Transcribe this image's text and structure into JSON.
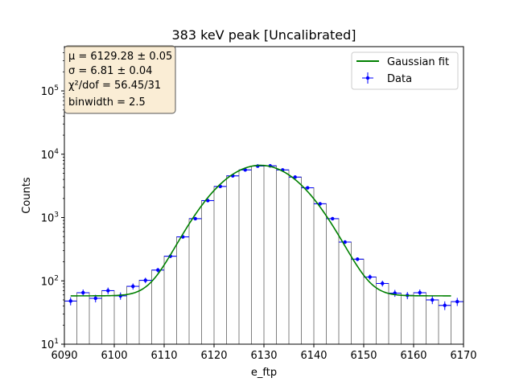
{
  "chart_data": {
    "type": "scatter",
    "title": "383 keV peak [Uncalibrated]",
    "xlabel": "e_ftp",
    "ylabel": "Counts",
    "xlim": [
      6090,
      6170
    ],
    "ylim": [
      10,
      500000
    ],
    "yscale": "log",
    "xticks": [
      "6090",
      "6100",
      "6110",
      "6120",
      "6130",
      "6140",
      "6150",
      "6160",
      "6170"
    ],
    "yticks": [
      "10^1",
      "10^2",
      "10^3",
      "10^4",
      "10^5"
    ],
    "stats_box": {
      "mu": "μ = 6129.28 ± 0.05",
      "sigma": "σ = 6.81 ± 0.04",
      "chi2": "χ²/dof = 56.45/31",
      "binwidth": "binwidth = 2.5"
    },
    "legend": {
      "position": "upper right",
      "fit_label": "Gaussian fit",
      "data_label": "Data"
    },
    "fit": {
      "mu": 6129.28,
      "sigma": 6.81,
      "amplitude": 6620,
      "background": 58,
      "x_range": [
        6091.25,
        6167.5
      ]
    },
    "bin_edges": [
      6090.0,
      6092.5,
      6095.0,
      6097.5,
      6100.0,
      6102.5,
      6105.0,
      6107.5,
      6110.0,
      6112.5,
      6115.0,
      6117.5,
      6120.0,
      6122.5,
      6125.0,
      6127.5,
      6130.0,
      6132.5,
      6135.0,
      6137.5,
      6140.0,
      6142.5,
      6145.0,
      6147.5,
      6150.0,
      6152.5,
      6155.0,
      6157.5,
      6160.0,
      6162.5,
      6165.0,
      6167.5,
      6170.0
    ],
    "series": [
      {
        "name": "Data",
        "x": [
          6091.25,
          6093.75,
          6096.25,
          6098.75,
          6101.25,
          6103.75,
          6106.25,
          6108.75,
          6111.25,
          6113.75,
          6116.25,
          6118.75,
          6121.25,
          6123.75,
          6126.25,
          6128.75,
          6131.25,
          6133.75,
          6136.25,
          6138.75,
          6141.25,
          6143.75,
          6146.25,
          6148.75,
          6151.25,
          6153.75,
          6156.25,
          6158.75,
          6161.25,
          6163.75,
          6166.25,
          6168.75
        ],
        "y": [
          48,
          65,
          53,
          70,
          58,
          82,
          102,
          148,
          245,
          495,
          960,
          1850,
          3100,
          4550,
          5650,
          6500,
          6550,
          5650,
          4350,
          2950,
          1650,
          960,
          410,
          220,
          115,
          91,
          64,
          59,
          65,
          50,
          41,
          47
        ]
      }
    ],
    "colors": {
      "fit": "#008000",
      "data": "#0000ff",
      "histogram": "#808080",
      "stats_bg": "#f5deb3"
    }
  }
}
